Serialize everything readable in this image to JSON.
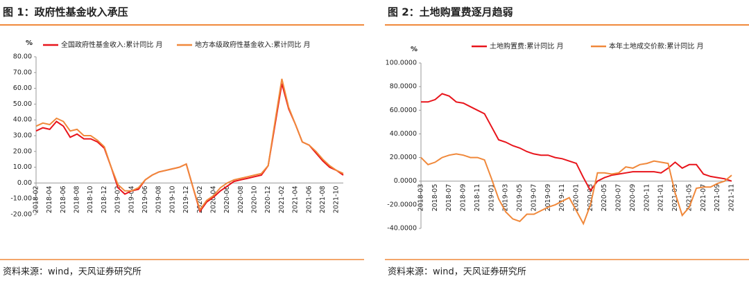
{
  "chart_data": [
    {
      "type": "line",
      "title": "图 1：政府性基金收入承压",
      "ylabel": "%",
      "source": "资料来源：wind，天风证券研究所",
      "categories": [
        "2018-02",
        null,
        "2018-04",
        null,
        "2018-06",
        null,
        "2018-08",
        null,
        "2018-10",
        null,
        "2018-12",
        null,
        "2019-02",
        null,
        "2019-04",
        null,
        "2019-06",
        null,
        "2019-08",
        null,
        "2019-10",
        null,
        "2019-12",
        null,
        "2020-02",
        null,
        "2020-04",
        null,
        "2020-06",
        null,
        "2020-08",
        null,
        "2020-10",
        null,
        "2020-12",
        null,
        "2021-02",
        null,
        "2021-04",
        null,
        "2021-06",
        null,
        "2021-08",
        null,
        "2021-10",
        null
      ],
      "series": [
        {
          "name": "全国政府性基金收入:累计同比 月",
          "color": "#e8141b",
          "values": [
            33,
            35,
            34,
            39,
            36,
            29,
            31,
            28,
            28,
            26,
            22,
            10,
            -3,
            -7,
            -5,
            -4,
            2,
            5,
            7,
            8,
            9,
            10,
            12,
            -3,
            -18,
            -12,
            -9,
            -5,
            -2,
            1,
            2,
            3,
            4,
            5,
            11,
            37,
            63,
            47,
            37,
            26,
            24,
            19,
            14,
            10,
            8,
            5
          ]
        },
        {
          "name": "地方本级政府性基金收入:累计同比 月",
          "color": "#f0883a",
          "values": [
            36,
            38,
            37,
            41,
            39,
            33,
            34,
            30,
            30,
            27,
            23,
            10,
            -1,
            -5,
            -5,
            -3,
            2,
            5,
            7,
            8,
            9,
            10,
            12,
            -3,
            -17,
            -11,
            -8,
            -3,
            0,
            2,
            3,
            4,
            5,
            6,
            11,
            39,
            66,
            48,
            37,
            26,
            24,
            20,
            15,
            11,
            8,
            6
          ]
        }
      ],
      "ylim": [
        -20,
        80
      ],
      "yticks": [
        {
          "value": -20,
          "label": "-20.00"
        },
        {
          "value": -10,
          "label": "-10.00"
        },
        {
          "value": 0,
          "label": "0.00"
        },
        {
          "value": 10,
          "label": "10.00"
        },
        {
          "value": 20,
          "label": "20.00"
        },
        {
          "value": 30,
          "label": "30.00"
        },
        {
          "value": 40,
          "label": "40.00"
        },
        {
          "value": 50,
          "label": "50.00"
        },
        {
          "value": 60,
          "label": "60.00"
        },
        {
          "value": 70,
          "label": "70.00"
        },
        {
          "value": 80,
          "label": "80.00"
        }
      ]
    },
    {
      "type": "line",
      "title": "图 2：土地购置费逐月趋弱",
      "ylabel": "%",
      "source": "资料来源：wind，天风证券研究所",
      "categories": [
        "2018-03",
        null,
        "2018-05",
        null,
        "2018-07",
        null,
        "2018-09",
        null,
        "2018-11",
        null,
        "2019-01",
        null,
        "2019-03",
        null,
        "2019-05",
        null,
        "2019-07",
        null,
        "2019-09",
        null,
        "2019-11",
        null,
        "2020-01",
        null,
        "2020-03",
        null,
        "2020-05",
        null,
        "2020-07",
        null,
        "2020-09",
        null,
        "2020-11",
        null,
        "2021-01",
        null,
        "2021-03",
        null,
        "2021-05",
        null,
        "2021-07",
        null,
        "2021-09",
        null,
        "2021-11"
      ],
      "series": [
        {
          "name": "土地购置费:累计同比 月",
          "color": "#e8141b",
          "values": [
            67,
            67,
            69,
            74,
            72,
            67,
            66,
            63,
            60,
            57,
            46,
            35,
            33,
            30,
            28,
            25,
            23,
            22,
            22,
            20,
            19,
            17,
            15,
            3,
            -8,
            0,
            3,
            5,
            6,
            7,
            8,
            8,
            8,
            8,
            7,
            11,
            16,
            11,
            14,
            14,
            6,
            4,
            3,
            2,
            0
          ]
        },
        {
          "name": "本年土地成交价款:累计同比 月",
          "color": "#f0883a",
          "values": [
            20,
            14,
            16,
            20,
            22,
            23,
            22,
            20,
            20,
            18,
            2,
            -15,
            -26,
            -32,
            -34,
            -28,
            -28,
            -25,
            -22,
            -20,
            -17,
            -14,
            -25,
            -36,
            -20,
            7,
            7,
            6,
            7,
            12,
            11,
            14,
            15,
            17,
            16,
            15,
            -10,
            -29,
            -22,
            -6,
            -5,
            -5,
            -2,
            0,
            5
          ]
        }
      ],
      "ylim": [
        -40,
        100
      ],
      "yticks": [
        {
          "value": -40,
          "label": "-40.0000"
        },
        {
          "value": -20,
          "label": "-20.0000"
        },
        {
          "value": 0,
          "label": "0.0000"
        },
        {
          "value": 20,
          "label": "20.0000"
        },
        {
          "value": 40,
          "label": "40.0000"
        },
        {
          "value": 60,
          "label": "60.0000"
        },
        {
          "value": 80,
          "label": "80.0000"
        },
        {
          "value": 100,
          "label": "100.0000"
        }
      ]
    }
  ]
}
